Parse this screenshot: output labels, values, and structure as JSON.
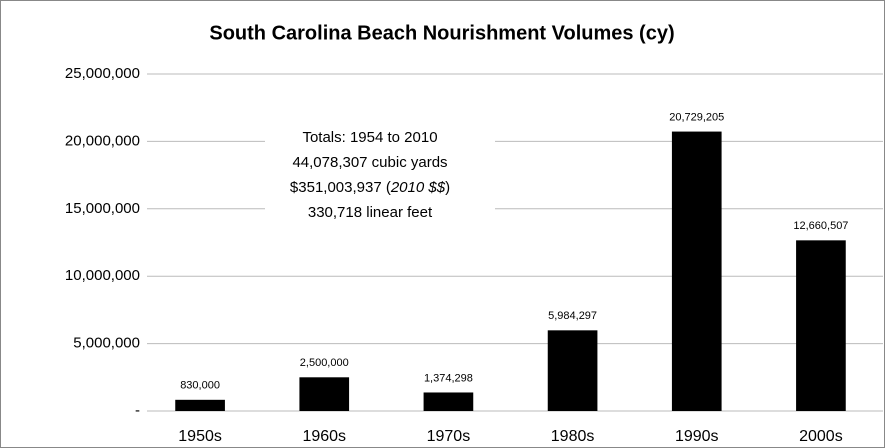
{
  "chart_data": {
    "type": "bar",
    "title": "South Carolina Beach Nourishment Volumes (cy)",
    "categories": [
      "1950s",
      "1960s",
      "1970s",
      "1980s",
      "1990s",
      "2000s"
    ],
    "values": [
      830000,
      2500000,
      1374298,
      5984297,
      20729205,
      12660507
    ],
    "value_labels": [
      "830,000",
      "2,500,000",
      "1,374,298",
      "5,984,297",
      "20,729,205",
      "12,660,507"
    ],
    "color": "#000000",
    "ylim": [
      0,
      25000000
    ],
    "yticks": [
      {
        "value": 0,
        "label": "-"
      },
      {
        "value": 5000000,
        "label": "5,000,000"
      },
      {
        "value": 10000000,
        "label": "10,000,000"
      },
      {
        "value": 15000000,
        "label": "15,000,000"
      },
      {
        "value": 20000000,
        "label": "20,000,000"
      },
      {
        "value": 25000000,
        "label": "25,000,000"
      }
    ],
    "grid": true,
    "annotation": {
      "lines": [
        "Totals:  1954 to 2010",
        "44,078,307 cubic yards",
        "330,718 linear feet"
      ],
      "cost": [
        "$351,003,937 (",
        "2010 $$",
        ")"
      ]
    }
  }
}
